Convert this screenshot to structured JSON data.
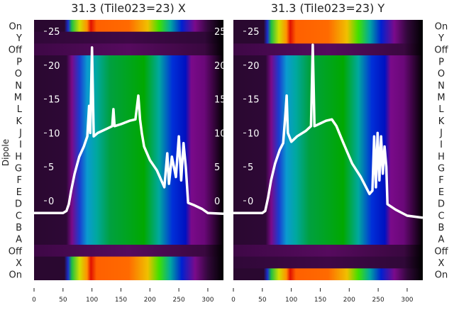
{
  "chart_data": [
    {
      "type": "heatmap",
      "title": "31.3 (Tile023=23) X",
      "ylabel": "Dipole",
      "row_labels": [
        "On",
        "Y",
        "Off",
        "P",
        "O",
        "N",
        "M",
        "L",
        "K",
        "J",
        "I",
        "H",
        "G",
        "F",
        "E",
        "D",
        "C",
        "B",
        "A",
        "Off",
        "X",
        "On"
      ],
      "row_kinds": [
        "on",
        "dark",
        "off",
        "dipole",
        "dipole",
        "dipole",
        "dipole",
        "dipole",
        "dipole",
        "dipole",
        "dipole",
        "dipole",
        "dipole",
        "dipole",
        "dipole",
        "dipole",
        "dipole",
        "dipole",
        "dipole",
        "off",
        "on",
        "on"
      ],
      "xlim": [
        0,
        327
      ],
      "xticks": [
        "0",
        "50",
        "100",
        "150",
        "200",
        "250",
        "300"
      ],
      "overlay_ylim": [
        -3.5,
        26.5
      ],
      "overlay_yticks": [
        "0",
        "5",
        "10",
        "15",
        "20",
        "25"
      ],
      "overlay_line": {
        "color": "#ffffff",
        "x": [
          0,
          50,
          56,
          60,
          64,
          70,
          78,
          86,
          92,
          95,
          97,
          100,
          103,
          110,
          125,
          135,
          137,
          139,
          150,
          165,
          175,
          180,
          183,
          186,
          190,
          200,
          212,
          225,
          230,
          233,
          238,
          245,
          250,
          254,
          258,
          262,
          266,
          275,
          290,
          300,
          327
        ],
        "y": [
          -1.8,
          -1.8,
          -1.5,
          -0.5,
          1.5,
          4,
          6.5,
          8,
          9.5,
          14,
          10,
          22.6,
          9.5,
          10,
          10.6,
          11,
          13.5,
          11,
          11.3,
          11.8,
          12,
          15.5,
          12,
          10,
          8,
          6,
          4.5,
          2,
          7,
          2.5,
          6.5,
          3.5,
          9.5,
          3,
          8.5,
          5,
          -0.3,
          -0.6,
          -1.2,
          -1.8,
          -1.9
        ]
      }
    },
    {
      "type": "heatmap",
      "title": "31.3 (Tile023=23) Y",
      "ylabel": "",
      "row_labels": [
        "On",
        "Y",
        "Off",
        "P",
        "O",
        "N",
        "M",
        "L",
        "K",
        "J",
        "I",
        "H",
        "G",
        "F",
        "E",
        "D",
        "C",
        "B",
        "A",
        "Off",
        "X",
        "On"
      ],
      "row_kinds": [
        "on",
        "on",
        "off",
        "dipole",
        "dipole",
        "dipole",
        "dipole",
        "dipole",
        "dipole",
        "dipole",
        "dipole",
        "dipole",
        "dipole",
        "dipole",
        "dipole",
        "dipole",
        "dipole",
        "dipole",
        "dipole",
        "off",
        "dark",
        "on"
      ],
      "xlim": [
        0,
        327
      ],
      "xticks": [
        "0",
        "50",
        "100",
        "150",
        "200",
        "250",
        "300"
      ],
      "overlay_ylim": [
        -3.5,
        26.5
      ],
      "overlay_yticks": [
        "0",
        "5",
        "10",
        "15",
        "20",
        "25"
      ],
      "overlay_line": {
        "color": "#ffffff",
        "x": [
          0,
          50,
          55,
          60,
          65,
          72,
          80,
          86,
          90,
          92,
          94,
          100,
          110,
          125,
          134,
          137,
          140,
          150,
          160,
          170,
          178,
          190,
          205,
          220,
          235,
          240,
          243,
          246,
          249,
          252,
          255,
          258,
          261,
          264,
          266,
          280,
          300,
          327
        ],
        "y": [
          -1.8,
          -1.8,
          -1.5,
          0.5,
          3,
          5.5,
          7.5,
          8.5,
          13,
          15.5,
          10,
          8.7,
          9.5,
          10.3,
          11,
          23,
          11,
          11.4,
          11.8,
          12,
          11,
          8.5,
          5.5,
          3.5,
          1,
          1.5,
          9.5,
          2,
          10,
          3,
          9.5,
          4,
          8,
          5,
          -0.5,
          -1.3,
          -2.2,
          -2.5
        ]
      }
    }
  ],
  "colors": {
    "off": "#4f0a55",
    "dark": "#3a0842",
    "background": "#2a0a30"
  }
}
